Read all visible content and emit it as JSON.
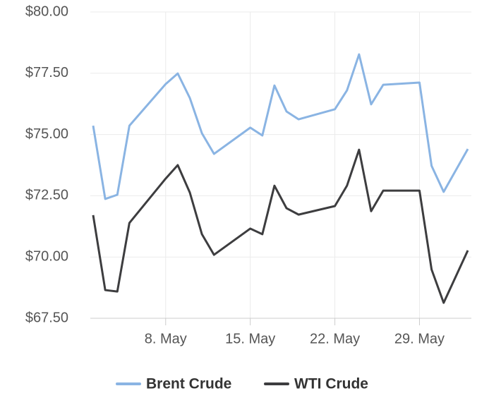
{
  "chart_data": {
    "type": "line",
    "x": [
      "2. May",
      "3. May",
      "4. May",
      "5. May",
      "8. May",
      "9. May",
      "10. May",
      "11. May",
      "12. May",
      "15. May",
      "16. May",
      "17. May",
      "18. May",
      "19. May",
      "22. May",
      "23. May",
      "24. May",
      "25. May",
      "26. May",
      "29. May",
      "30. May",
      "31. May",
      "2. Jun"
    ],
    "series": [
      {
        "name": "Brent Crude",
        "color": "#8ab4e3",
        "values": [
          75.36,
          72.37,
          72.54,
          75.36,
          77.06,
          77.49,
          76.49,
          75.05,
          74.21,
          75.28,
          74.96,
          77.0,
          75.94,
          75.62,
          76.03,
          76.8,
          78.27,
          76.23,
          77.03,
          77.12,
          73.72,
          72.66,
          74.41
        ]
      },
      {
        "name": "WTI Crude",
        "color": "#3d3d3f",
        "values": [
          71.71,
          68.65,
          68.59,
          71.39,
          73.2,
          73.75,
          72.63,
          70.93,
          70.09,
          71.16,
          70.93,
          72.91,
          71.99,
          71.73,
          72.08,
          72.91,
          74.38,
          71.87,
          72.71,
          72.71,
          69.49,
          68.13,
          70.27
        ]
      }
    ],
    "xticks": [
      "8. May",
      "15. May",
      "22. May",
      "29. May"
    ],
    "ylim": [
      67.5,
      80
    ],
    "yticks": [
      {
        "value": 67.5,
        "label": "$67.50"
      },
      {
        "value": 70,
        "label": "$70.00"
      },
      {
        "value": 72.5,
        "label": "$72.50"
      },
      {
        "value": 75,
        "label": "$75.00"
      },
      {
        "value": 77.5,
        "label": "$77.50"
      },
      {
        "value": 80,
        "label": "$80.00"
      }
    ],
    "grid": true,
    "legend": "bottom"
  }
}
